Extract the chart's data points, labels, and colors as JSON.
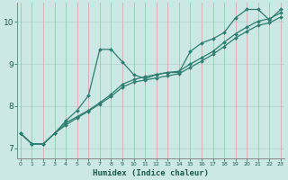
{
  "xlabel": "Humidex (Indice chaleur)",
  "ylabel": "",
  "background_color": "#cce8e4",
  "grid_color_h": "#b8d8d4",
  "grid_color_v": "#d4a0a0",
  "line_color": "#2e7d6e",
  "x_ticks": [
    0,
    1,
    2,
    3,
    4,
    5,
    6,
    7,
    8,
    9,
    10,
    11,
    12,
    13,
    14,
    15,
    16,
    17,
    18,
    19,
    20,
    21,
    22,
    23
  ],
  "y_ticks": [
    7,
    8,
    9,
    10
  ],
  "ylim": [
    6.75,
    10.45
  ],
  "xlim": [
    -0.3,
    23.3
  ],
  "line1_x": [
    0,
    1,
    2,
    3,
    4,
    5,
    6,
    7,
    8,
    9,
    10,
    11,
    12,
    13,
    14,
    15,
    16,
    17,
    18,
    19,
    20,
    21,
    22,
    23
  ],
  "line1_y": [
    7.35,
    7.1,
    7.1,
    7.35,
    7.65,
    7.9,
    8.25,
    9.35,
    9.35,
    9.05,
    8.75,
    8.65,
    8.75,
    8.8,
    8.8,
    9.3,
    9.5,
    9.6,
    9.75,
    10.1,
    10.3,
    10.3,
    10.05,
    10.3
  ],
  "line2_x": [
    0,
    1,
    2,
    3,
    4,
    5,
    6,
    7,
    8,
    9,
    10,
    11,
    12,
    13,
    14,
    15,
    16,
    17,
    18,
    19,
    20,
    21,
    22,
    23
  ],
  "line2_y": [
    7.35,
    7.1,
    7.1,
    7.35,
    7.6,
    7.75,
    7.9,
    8.08,
    8.28,
    8.52,
    8.63,
    8.7,
    8.75,
    8.8,
    8.83,
    9.0,
    9.15,
    9.3,
    9.52,
    9.72,
    9.88,
    10.02,
    10.08,
    10.22
  ],
  "line3_x": [
    0,
    1,
    2,
    3,
    4,
    5,
    6,
    7,
    8,
    9,
    10,
    11,
    12,
    13,
    14,
    15,
    16,
    17,
    18,
    19,
    20,
    21,
    22,
    23
  ],
  "line3_y": [
    7.35,
    7.1,
    7.1,
    7.35,
    7.55,
    7.72,
    7.88,
    8.05,
    8.23,
    8.45,
    8.57,
    8.62,
    8.67,
    8.72,
    8.77,
    8.92,
    9.07,
    9.23,
    9.42,
    9.62,
    9.78,
    9.92,
    9.98,
    10.12
  ]
}
